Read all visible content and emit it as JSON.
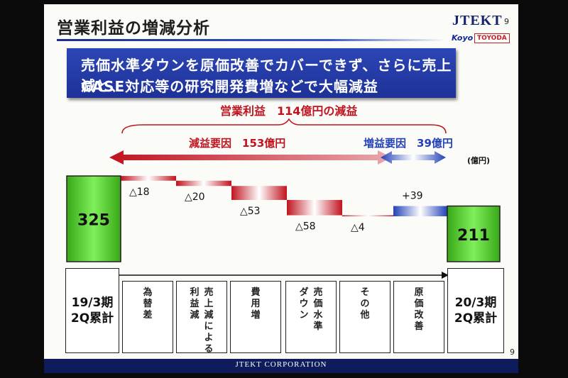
{
  "slide": {
    "title": "営業利益の増減分析",
    "page_number": "9",
    "logo": {
      "brand": "JTEKT",
      "sub1": "Koyo",
      "sub2": "TOYODA"
    },
    "banner_line1": "売価水準ダウンを原価改善でカバーできず、さらに売上減と、",
    "banner_line2": "CASE対応等の研究開発費増などで大幅減益",
    "footer": "JTEKT CORPORATION"
  },
  "colors": {
    "total_bar": "#5fd43a",
    "decrease": "#c0131f",
    "increase": "#2341b8",
    "banner": "#2238a8"
  },
  "chart_data": {
    "type": "waterfall",
    "unit": "(億円)",
    "start": {
      "label": "19/3期\n2Q累計",
      "value": 325,
      "display": "325"
    },
    "end": {
      "label": "20/3期\n2Q累計",
      "value": 211,
      "display": "211"
    },
    "steps": [
      {
        "label": "為替差",
        "value": -18,
        "display": "△18",
        "columns": [
          "為替差"
        ]
      },
      {
        "label": "売上減による利益減",
        "value": -20,
        "display": "△20",
        "columns": [
          "売上減による",
          "利益減"
        ]
      },
      {
        "label": "費用増",
        "value": -53,
        "display": "△53",
        "columns": [
          "費用増"
        ]
      },
      {
        "label": "売価水準ダウン",
        "value": -58,
        "display": "△58",
        "columns": [
          "売価水準",
          "ダウン"
        ]
      },
      {
        "label": "その他",
        "value": -4,
        "display": "△4",
        "columns": [
          "その他"
        ]
      },
      {
        "label": "原価改善",
        "value": 39,
        "display": "+39",
        "columns": [
          "原価改善"
        ]
      }
    ],
    "annotations": {
      "total_change": "営業利益　114億円の減益",
      "decrease_factors": "減益要因　153億円",
      "increase_factors": "増益要因　39億円"
    }
  }
}
